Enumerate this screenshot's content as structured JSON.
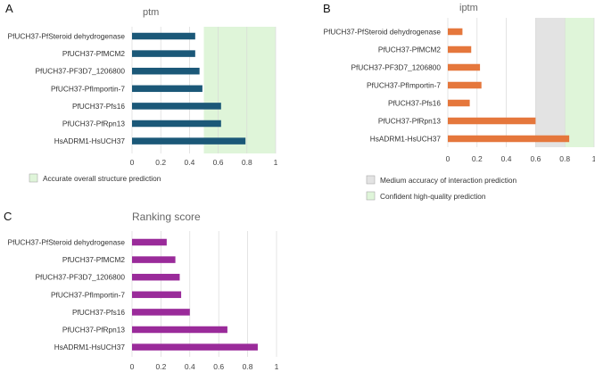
{
  "chart_data": [
    {
      "panel": "A",
      "type": "bar",
      "orientation": "horizontal",
      "title": "ptm",
      "categories": [
        "PfUCH37-PfSteroid dehydrogenase",
        "PfUCH37-PfMCM2",
        "PfUCH37-PF3D7_1206800",
        "PfUCH37-PfImportin-7",
        "PfUCH37-Pfs16",
        "PfUCH37-PfRpn13",
        "HsADRM1-HsUCH37"
      ],
      "values": [
        0.44,
        0.44,
        0.47,
        0.49,
        0.62,
        0.62,
        0.79
      ],
      "xlim": [
        0,
        1
      ],
      "xticks": [
        "0",
        "0.2",
        "0.4",
        "0.6",
        "0.8",
        "1"
      ],
      "xtick_values": [
        0,
        0.2,
        0.4,
        0.6,
        0.8,
        1
      ],
      "grid": true,
      "bar_color": "#1b5878",
      "bands": [
        {
          "from": 0.5,
          "to": 1.0,
          "color": "#dff5d9",
          "label": "Accurate overall structure prediction"
        }
      ]
    },
    {
      "panel": "B",
      "type": "bar",
      "orientation": "horizontal",
      "title": "iptm",
      "categories": [
        "PfUCH37-PfSteroid dehydrogenase",
        "PfUCH37-PfMCM2",
        "PfUCH37-PF3D7_1206800",
        "PfUCH37-PfImportin-7",
        "PfUCH37-Pfs16",
        "PfUCH37-PfRpn13",
        "HsADRM1-HsUCH37"
      ],
      "values": [
        0.1,
        0.16,
        0.22,
        0.23,
        0.15,
        0.6,
        0.83
      ],
      "xlim": [
        0,
        1
      ],
      "xticks": [
        "0",
        "0.2",
        "0.4",
        "0.6",
        "0.8",
        "1"
      ],
      "xtick_values": [
        0,
        0.2,
        0.4,
        0.6,
        0.8,
        1
      ],
      "grid": true,
      "bar_color": "#e5773c",
      "bands": [
        {
          "from": 0.6,
          "to": 0.8,
          "color": "#e3e3e3",
          "label": "Medium accuracy of interaction prediction"
        },
        {
          "from": 0.8,
          "to": 1.0,
          "color": "#dff5d9",
          "label": "Confident high-quality prediction"
        }
      ]
    },
    {
      "panel": "C",
      "type": "bar",
      "orientation": "horizontal",
      "title": "Ranking score",
      "categories": [
        "PfUCH37-PfSteroid dehydrogenase",
        "PfUCH37-PfMCM2",
        "PfUCH37-PF3D7_1206800",
        "PfUCH37-PfImportin-7",
        "PfUCH37-Pfs16",
        "PfUCH37-PfRpn13",
        "HsADRM1-HsUCH37"
      ],
      "values": [
        0.24,
        0.3,
        0.33,
        0.34,
        0.4,
        0.66,
        0.87
      ],
      "xlim": [
        0,
        1
      ],
      "xticks": [
        "0",
        "0.2",
        "0.4",
        "0.6",
        "0.8",
        "1"
      ],
      "xtick_values": [
        0,
        0.2,
        0.4,
        0.6,
        0.8,
        1
      ],
      "grid": true,
      "bar_color": "#9a2b9a",
      "bands": []
    }
  ]
}
